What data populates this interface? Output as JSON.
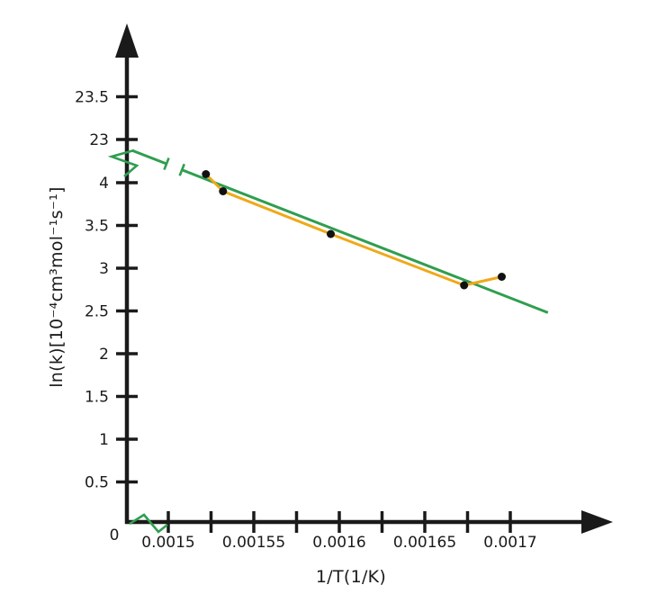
{
  "chart_data": {
    "type": "scatter",
    "title": "",
    "xlabel": "1/T(1/K)",
    "ylabel": "ln(k)[10⁻⁴cm³mol⁻¹s⁻¹]",
    "axis_color": "#1a1a1a",
    "x_axis": {
      "origin_label": "0",
      "major_ticks": [
        0.0015,
        0.00155,
        0.0016,
        0.00165,
        0.0017
      ],
      "tick_labels": [
        "0.0015",
        "0.00155",
        "0.0016",
        "0.00165",
        "0.0017"
      ],
      "minor_ticks": [
        0.001525,
        0.001575,
        0.001625,
        0.001675
      ],
      "axis_break": true,
      "range_shown": [
        0.0015,
        0.00172
      ]
    },
    "y_axis": {
      "lower_ticks": [
        0.5,
        1,
        1.5,
        2,
        2.5,
        3,
        3.5,
        4
      ],
      "lower_tick_labels": [
        "0.5",
        "1",
        "1.5",
        "2",
        "2.5",
        "3",
        "3.5",
        "4"
      ],
      "upper_ticks": [
        23,
        23.5
      ],
      "upper_tick_labels": [
        "23",
        "23.5"
      ],
      "axis_break": true,
      "lower_range": [
        0,
        4.15
      ],
      "upper_range": [
        23,
        23.5
      ]
    },
    "series": [
      {
        "name": "measured-data",
        "type": "scatter-line",
        "line_color": "#f0a818",
        "marker_color": "#111111",
        "points": [
          {
            "x": 0.001522,
            "y": 4.1
          },
          {
            "x": 0.001532,
            "y": 3.9
          },
          {
            "x": 0.001595,
            "y": 3.4
          },
          {
            "x": 0.001673,
            "y": 2.8
          },
          {
            "x": 0.001695,
            "y": 2.9
          }
        ]
      },
      {
        "name": "arrhenius-fit-line",
        "type": "line",
        "color": "#2f9e4f",
        "segment": {
          "x1": 0.001508,
          "y1": 4.15,
          "x2": 0.001722,
          "y2": 2.48
        },
        "extrapolated_axis_intercept": 22.9,
        "line_break_with_caps": true
      }
    ],
    "grid": false,
    "legend": false
  }
}
